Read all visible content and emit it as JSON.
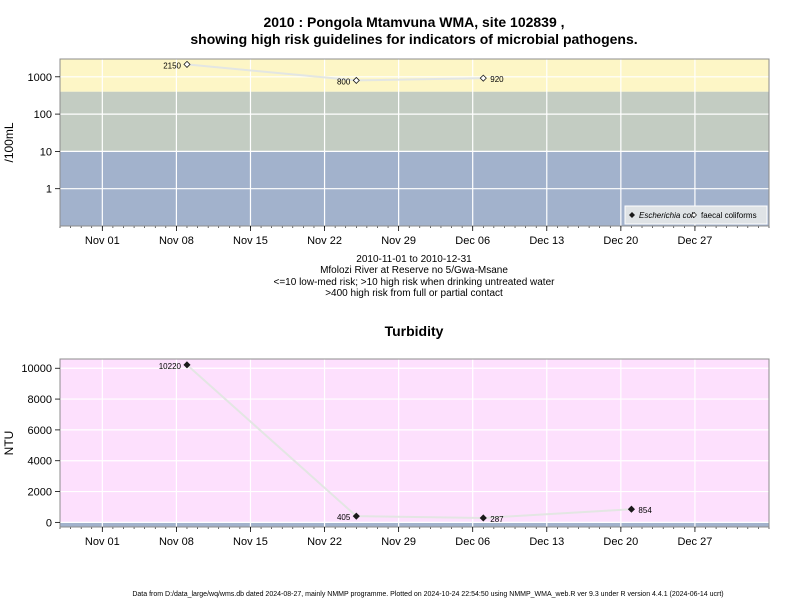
{
  "chart_data": [
    {
      "type": "line",
      "title": "2010 : Pongola Mtamvuna WMA, site 102839 ,",
      "title2": "showing high risk guidelines for indicators of microbial pathogens.",
      "ylabel": "/100mL",
      "yscale": "log",
      "ylim": [
        0.1,
        3000
      ],
      "yticks": [
        1,
        10,
        100,
        1000
      ],
      "ytick_labels": [
        "1",
        "10",
        "100",
        "1000"
      ],
      "xlim": [
        "2010-10-28",
        "2011-01-03"
      ],
      "xticks": [
        "2010-11-01",
        "2010-11-08",
        "2010-11-15",
        "2010-11-22",
        "2010-11-29",
        "2010-12-06",
        "2010-12-13",
        "2010-12-20",
        "2010-12-27"
      ],
      "xtick_labels": [
        "Nov 01",
        "Nov 08",
        "Nov 15",
        "Nov 22",
        "Nov 29",
        "Dec 06",
        "Dec 13",
        "Dec 20",
        "Dec 27"
      ],
      "bands": [
        {
          "from": 0.1,
          "to": 10,
          "color": "#a2b2cc"
        },
        {
          "from": 10,
          "to": 400,
          "color": "#c3ccc2"
        },
        {
          "from": 400,
          "to": 3000,
          "color": "#fdf6c6"
        }
      ],
      "series": [
        {
          "name": "Escherichia coli",
          "marker": "filled-diamond",
          "points": []
        },
        {
          "name": "faecal coliforms",
          "marker": "open-diamond",
          "points": [
            {
              "x": "2010-11-09",
              "y": 2150,
              "label": "2150"
            },
            {
              "x": "2010-11-25",
              "y": 800,
              "label": "800"
            },
            {
              "x": "2010-12-07",
              "y": 920,
              "label": "920"
            }
          ]
        }
      ],
      "legend_position": "bottom-right",
      "caption_lines": [
        "2010-11-01 to 2010-12-31",
        "Mfolozi River at Reserve no 5/Gwa-Msane",
        "<=10 low-med risk; >10 high risk when drinking untreated water",
        ">400 high risk from full or partial contact"
      ]
    },
    {
      "type": "line",
      "title": "Turbidity",
      "ylabel": "NTU",
      "ylim": [
        -300,
        10600
      ],
      "yticks": [
        0,
        2000,
        4000,
        6000,
        8000,
        10000
      ],
      "ytick_labels": [
        "0",
        "2000",
        "4000",
        "6000",
        "8000",
        "10000"
      ],
      "xlim": [
        "2010-10-28",
        "2011-01-03"
      ],
      "xticks": [
        "2010-11-01",
        "2010-11-08",
        "2010-11-15",
        "2010-11-22",
        "2010-11-29",
        "2010-12-06",
        "2010-12-13",
        "2010-12-20",
        "2010-12-27"
      ],
      "xtick_labels": [
        "Nov 01",
        "Nov 08",
        "Nov 15",
        "Nov 22",
        "Nov 29",
        "Dec 06",
        "Dec 13",
        "Dec 20",
        "Dec 27"
      ],
      "bands": [
        {
          "from": -300,
          "to": -20,
          "color": "#a2b2cc"
        },
        {
          "from": -20,
          "to": 10600,
          "color": "#fde0fd"
        }
      ],
      "series": [
        {
          "name": "",
          "marker": "filled-diamond",
          "points": [
            {
              "x": "2010-11-09",
              "y": 10220,
              "label": "10220"
            },
            {
              "x": "2010-11-25",
              "y": 405,
              "label": "405"
            },
            {
              "x": "2010-12-07",
              "y": 287,
              "label": "287"
            },
            {
              "x": "2010-12-21",
              "y": 854,
              "label": "854"
            }
          ]
        }
      ]
    }
  ],
  "footer": "Data from D:/data_large/wq/wms.db dated 2024-08-27, mainly NMMP programme. Plotted on 2024-10-24 22:54:50 using NMMP_WMA_web.R ver 9.3 under R version 4.4.1 (2024-06-14 ucrt)"
}
